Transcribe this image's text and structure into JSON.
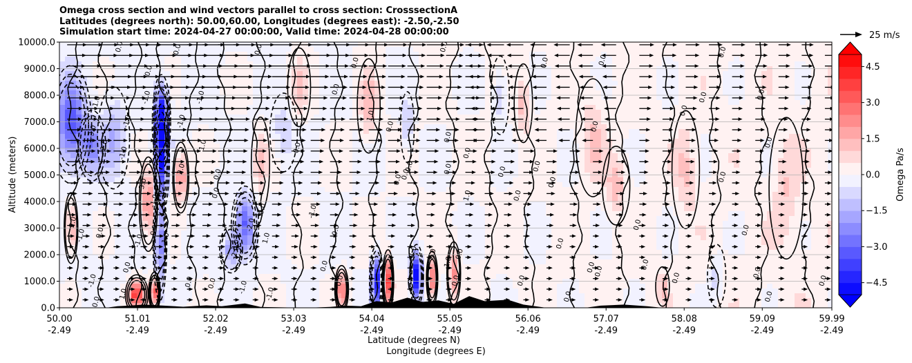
{
  "chart_data": {
    "type": "heatmap",
    "title_lines": [
      "Omega cross section and wind vectors parallel to cross section: CrosssectionA",
      "Latitudes (degrees north): 50.00,60.00, Longitudes (degrees east): -2.50,-2.50",
      "Simulation start time: 2024-04-27 00:00:00, Valid time: 2024-04-28 00:00:00"
    ],
    "ylabel": "Altitude (meters)",
    "xlabel_lines": [
      "Latitude (degrees N)",
      "Longitude (degrees E)"
    ],
    "ylim": [
      0,
      10000
    ],
    "xlim": [
      50.0,
      59.99
    ],
    "y_ticks": [
      {
        "value": 0,
        "label": "0.0"
      },
      {
        "value": 1000,
        "label": "1000.0"
      },
      {
        "value": 2000,
        "label": "2000.0"
      },
      {
        "value": 3000,
        "label": "3000.0"
      },
      {
        "value": 4000,
        "label": "4000.0"
      },
      {
        "value": 5000,
        "label": "5000.0"
      },
      {
        "value": 6000,
        "label": "6000.0"
      },
      {
        "value": 7000,
        "label": "7000.0"
      },
      {
        "value": 8000,
        "label": "8000.0"
      },
      {
        "value": 9000,
        "label": "9000.0"
      },
      {
        "value": 10000,
        "label": "10000.0"
      }
    ],
    "x_ticks": [
      {
        "value": 50.0,
        "lat": "50.00",
        "lon": "-2.49"
      },
      {
        "value": 51.01,
        "lat": "51.01",
        "lon": "-2.49"
      },
      {
        "value": 52.02,
        "lat": "52.02",
        "lon": "-2.49"
      },
      {
        "value": 53.03,
        "lat": "53.03",
        "lon": "-2.49"
      },
      {
        "value": 54.04,
        "lat": "54.04",
        "lon": "-2.49"
      },
      {
        "value": 55.05,
        "lat": "55.05",
        "lon": "-2.49"
      },
      {
        "value": 56.06,
        "lat": "56.06",
        "lon": "-2.49"
      },
      {
        "value": 57.07,
        "lat": "57.07",
        "lon": "-2.49"
      },
      {
        "value": 58.08,
        "lat": "58.08",
        "lon": "-2.49"
      },
      {
        "value": 59.09,
        "lat": "59.09",
        "lon": "-2.49"
      },
      {
        "value": 59.99,
        "lat": "59.99",
        "lon": "-2.49"
      }
    ],
    "grid": "horizontal",
    "colorbar": {
      "label": "Omega Pa/s",
      "range": [
        -5.0,
        5.0
      ],
      "extend": "both",
      "levels": 20,
      "ticks": [
        {
          "value": 4.5,
          "label": "4.5"
        },
        {
          "value": 3.0,
          "label": "3.0"
        },
        {
          "value": 1.5,
          "label": "1.5"
        },
        {
          "value": 0.0,
          "label": "0.0"
        },
        {
          "value": -1.5,
          "label": "−1.5"
        },
        {
          "value": -3.0,
          "label": "−3.0"
        },
        {
          "value": -4.5,
          "label": "−4.5"
        }
      ]
    },
    "vector_key": {
      "label": "25 m/s",
      "speed": 25
    },
    "colors": {
      "negative": "#0000ff",
      "positive": "#ff0000",
      "neutral": "#ffffff",
      "terrain": "#000000"
    },
    "omega_features": [
      {
        "lat": 50.15,
        "alt": 6900,
        "value": -3.2,
        "wlat": 0.18,
        "walt": 1500
      },
      {
        "lat": 50.42,
        "alt": 6100,
        "value": -2.0,
        "wlat": 0.12,
        "walt": 900
      },
      {
        "lat": 50.7,
        "alt": 6400,
        "value": -1.4,
        "wlat": 0.14,
        "walt": 1300
      },
      {
        "lat": 51.32,
        "alt": 7000,
        "value": -5.5,
        "wlat": 0.08,
        "walt": 1200
      },
      {
        "lat": 51.32,
        "alt": 5600,
        "value": -3.5,
        "wlat": 0.07,
        "walt": 1400
      },
      {
        "lat": 51.3,
        "alt": 2500,
        "value": -2.6,
        "wlat": 0.06,
        "walt": 1500
      },
      {
        "lat": 52.4,
        "alt": 3100,
        "value": -3.2,
        "wlat": 0.12,
        "walt": 1000
      },
      {
        "lat": 52.22,
        "alt": 2200,
        "value": -2.0,
        "wlat": 0.1,
        "walt": 600
      },
      {
        "lat": 51.15,
        "alt": 3900,
        "value": 2.4,
        "wlat": 0.08,
        "walt": 1200
      },
      {
        "lat": 51.57,
        "alt": 4900,
        "value": 2.3,
        "wlat": 0.07,
        "walt": 900
      },
      {
        "lat": 50.15,
        "alt": 3000,
        "value": 2.2,
        "wlat": 0.06,
        "walt": 900
      },
      {
        "lat": 51.0,
        "alt": 500,
        "value": 3.8,
        "wlat": 0.1,
        "walt": 500
      },
      {
        "lat": 51.23,
        "alt": 600,
        "value": 4.2,
        "wlat": 0.05,
        "walt": 500
      },
      {
        "lat": 53.65,
        "alt": 700,
        "value": 3.0,
        "wlat": 0.06,
        "walt": 600
      },
      {
        "lat": 54.1,
        "alt": 1000,
        "value": -4.5,
        "wlat": 0.06,
        "walt": 900
      },
      {
        "lat": 54.25,
        "alt": 1000,
        "value": 3.5,
        "wlat": 0.05,
        "walt": 800
      },
      {
        "lat": 54.62,
        "alt": 1200,
        "value": -5.5,
        "wlat": 0.06,
        "walt": 800
      },
      {
        "lat": 54.82,
        "alt": 1100,
        "value": 2.6,
        "wlat": 0.05,
        "walt": 700
      },
      {
        "lat": 55.1,
        "alt": 1300,
        "value": 2.2,
        "wlat": 0.06,
        "walt": 800
      },
      {
        "lat": 54.0,
        "alt": 7600,
        "value": 1.4,
        "wlat": 0.1,
        "walt": 1200
      },
      {
        "lat": 54.5,
        "alt": 6800,
        "value": -1.2,
        "wlat": 0.06,
        "walt": 900
      },
      {
        "lat": 53.1,
        "alt": 8300,
        "value": 1.1,
        "wlat": 0.1,
        "walt": 1000
      },
      {
        "lat": 56.0,
        "alt": 7700,
        "value": 1.3,
        "wlat": 0.08,
        "walt": 1000
      },
      {
        "lat": 55.7,
        "alt": 8000,
        "value": -1.1,
        "wlat": 0.08,
        "walt": 1000
      },
      {
        "lat": 57.2,
        "alt": 4600,
        "value": 1.2,
        "wlat": 0.12,
        "walt": 1000
      },
      {
        "lat": 56.9,
        "alt": 6400,
        "value": 1.0,
        "wlat": 0.15,
        "walt": 1500
      },
      {
        "lat": 58.1,
        "alt": 5200,
        "value": 1.0,
        "wlat": 0.12,
        "walt": 1500
      },
      {
        "lat": 57.8,
        "alt": 800,
        "value": 1.2,
        "wlat": 0.06,
        "walt": 500
      },
      {
        "lat": 58.5,
        "alt": 1200,
        "value": -0.9,
        "wlat": 0.08,
        "walt": 800
      },
      {
        "lat": 59.4,
        "alt": 4500,
        "value": 0.8,
        "wlat": 0.15,
        "walt": 1800
      },
      {
        "lat": 52.6,
        "alt": 5400,
        "value": 1.1,
        "wlat": 0.08,
        "walt": 1200
      },
      {
        "lat": 52.9,
        "alt": 6600,
        "value": -0.9,
        "wlat": 0.12,
        "walt": 1000
      }
    ],
    "terrain_profile": [
      {
        "lat": 50.6,
        "alt": 0
      },
      {
        "lat": 50.75,
        "alt": 60
      },
      {
        "lat": 50.95,
        "alt": 90
      },
      {
        "lat": 51.1,
        "alt": 120
      },
      {
        "lat": 51.35,
        "alt": 80
      },
      {
        "lat": 51.6,
        "alt": 40
      },
      {
        "lat": 51.9,
        "alt": 90
      },
      {
        "lat": 52.1,
        "alt": 60
      },
      {
        "lat": 52.4,
        "alt": 160
      },
      {
        "lat": 52.6,
        "alt": 30
      },
      {
        "lat": 53.2,
        "alt": 0
      },
      {
        "lat": 53.5,
        "alt": 30
      },
      {
        "lat": 53.7,
        "alt": 80
      },
      {
        "lat": 53.9,
        "alt": 60
      },
      {
        "lat": 54.1,
        "alt": 250
      },
      {
        "lat": 54.3,
        "alt": 200
      },
      {
        "lat": 54.5,
        "alt": 380
      },
      {
        "lat": 54.7,
        "alt": 220
      },
      {
        "lat": 54.9,
        "alt": 280
      },
      {
        "lat": 55.1,
        "alt": 150
      },
      {
        "lat": 55.3,
        "alt": 440
      },
      {
        "lat": 55.5,
        "alt": 250
      },
      {
        "lat": 55.8,
        "alt": 300
      },
      {
        "lat": 56.0,
        "alt": 120
      },
      {
        "lat": 56.3,
        "alt": 0
      },
      {
        "lat": 56.8,
        "alt": 0
      },
      {
        "lat": 57.0,
        "alt": 80
      },
      {
        "lat": 57.3,
        "alt": 120
      },
      {
        "lat": 57.6,
        "alt": 60
      },
      {
        "lat": 57.8,
        "alt": 0
      }
    ],
    "vector_columns": [
      50.1,
      50.3,
      50.5,
      50.7,
      50.9,
      51.05,
      51.25,
      51.45,
      51.65,
      51.85,
      52.05,
      52.25,
      52.5,
      52.75,
      53.0,
      53.25,
      53.5,
      53.75,
      54.0,
      54.25,
      54.5,
      54.75,
      55.0,
      55.25,
      55.5,
      55.75,
      56.0,
      56.3,
      56.6,
      56.9,
      57.2,
      57.5,
      57.8,
      58.1,
      58.4,
      58.7,
      59.0,
      59.3,
      59.6,
      59.9
    ],
    "vector_rows": [
      300,
      700,
      1100,
      1500,
      1900,
      2300,
      2700,
      3100,
      3500,
      3900,
      4300,
      4700,
      5100,
      5500,
      5900,
      6300,
      6700,
      7100,
      7500,
      7900,
      8300,
      8700,
      9100,
      9500,
      9900
    ],
    "contour_labels": [
      {
        "lat": 50.45,
        "alt": 6600,
        "text": "-3.0"
      },
      {
        "lat": 50.6,
        "alt": 6050,
        "text": "-2.0"
      },
      {
        "lat": 50.5,
        "alt": 7700,
        "text": "-1.0"
      },
      {
        "lat": 50.85,
        "alt": 5800,
        "text": "-1.0"
      },
      {
        "lat": 50.9,
        "alt": 7000,
        "text": "-1.0"
      },
      {
        "lat": 51.15,
        "alt": 7900,
        "text": "-1.0"
      },
      {
        "lat": 51.18,
        "alt": 8900,
        "text": "0.0"
      },
      {
        "lat": 51.6,
        "alt": 7000,
        "text": "-1.0"
      },
      {
        "lat": 51.85,
        "alt": 7900,
        "text": "-1.0"
      },
      {
        "lat": 51.6,
        "alt": 5200,
        "text": "2.0"
      },
      {
        "lat": 51.88,
        "alt": 6100,
        "text": "1.0"
      },
      {
        "lat": 51.1,
        "alt": 4600,
        "text": "-3.0"
      },
      {
        "lat": 51.25,
        "alt": 4000,
        "text": "-1.0"
      },
      {
        "lat": 51.05,
        "alt": 2500,
        "text": "-1.0"
      },
      {
        "lat": 51.25,
        "alt": 2900,
        "text": "0.0"
      },
      {
        "lat": 50.2,
        "alt": 3200,
        "text": "2.0"
      },
      {
        "lat": 50.55,
        "alt": 2800,
        "text": "0.0"
      },
      {
        "lat": 50.3,
        "alt": 2700,
        "text": "-1.0"
      },
      {
        "lat": 50.45,
        "alt": 1000,
        "text": "-1.0"
      },
      {
        "lat": 50.9,
        "alt": 1500,
        "text": "0.0"
      },
      {
        "lat": 51.4,
        "alt": 2600,
        "text": "1.0"
      },
      {
        "lat": 52.07,
        "alt": 5000,
        "text": "0.0"
      },
      {
        "lat": 52.05,
        "alt": 4300,
        "text": "0.0"
      },
      {
        "lat": 52.3,
        "alt": 2300,
        "text": "-3.0"
      },
      {
        "lat": 52.3,
        "alt": 2050,
        "text": "-2.0"
      },
      {
        "lat": 52.5,
        "alt": 3100,
        "text": "-2.0"
      },
      {
        "lat": 52.65,
        "alt": 3700,
        "text": "0.0"
      },
      {
        "lat": 52.7,
        "alt": 2600,
        "text": "1.0"
      },
      {
        "lat": 52.4,
        "alt": 750,
        "text": "-1.0"
      },
      {
        "lat": 51.7,
        "alt": 950,
        "text": "0.0"
      },
      {
        "lat": 52.0,
        "alt": 900,
        "text": "0.0"
      },
      {
        "lat": 53.3,
        "alt": 3600,
        "text": "-1.0"
      },
      {
        "lat": 53.6,
        "alt": 2900,
        "text": "0.0"
      },
      {
        "lat": 53.45,
        "alt": 1550,
        "text": "0.0"
      },
      {
        "lat": 53.65,
        "alt": 1000,
        "text": "0.0"
      },
      {
        "lat": 53.6,
        "alt": 8200,
        "text": "0.0"
      },
      {
        "lat": 53.85,
        "alt": 9200,
        "text": "0.0"
      },
      {
        "lat": 54.05,
        "alt": 7200,
        "text": "1.0"
      },
      {
        "lat": 53.1,
        "alt": 6000,
        "text": "0.0"
      },
      {
        "lat": 54.6,
        "alt": 2100,
        "text": "1.0"
      },
      {
        "lat": 54.4,
        "alt": 4800,
        "text": "0.0"
      },
      {
        "lat": 54.5,
        "alt": 5000,
        "text": "0.0"
      },
      {
        "lat": 54.3,
        "alt": 6800,
        "text": "0.0"
      },
      {
        "lat": 54.55,
        "alt": 5300,
        "text": "0.0"
      },
      {
        "lat": 55.05,
        "alt": 6400,
        "text": "0.0"
      },
      {
        "lat": 55.05,
        "alt": 5200,
        "text": "0.0"
      },
      {
        "lat": 54.85,
        "alt": 2000,
        "text": "0.0"
      },
      {
        "lat": 55.05,
        "alt": 1700,
        "text": "1.0"
      },
      {
        "lat": 55.15,
        "alt": 1000,
        "text": "0.0"
      },
      {
        "lat": 55.2,
        "alt": 2000,
        "text": "0.0"
      },
      {
        "lat": 55.3,
        "alt": 4200,
        "text": "1.0"
      },
      {
        "lat": 55.3,
        "alt": 5800,
        "text": "0.0"
      },
      {
        "lat": 55.75,
        "alt": 5100,
        "text": "0.0"
      },
      {
        "lat": 55.95,
        "alt": 4200,
        "text": "0.0"
      },
      {
        "lat": 56.2,
        "alt": 5300,
        "text": "0.0"
      },
      {
        "lat": 56.4,
        "alt": 4700,
        "text": "0.0"
      },
      {
        "lat": 55.0,
        "alt": 9800,
        "text": "0.0"
      },
      {
        "lat": 56.3,
        "alt": 9200,
        "text": "0.0"
      },
      {
        "lat": 56.95,
        "alt": 6800,
        "text": "0.0"
      },
      {
        "lat": 57.05,
        "alt": 9300,
        "text": "0.0"
      },
      {
        "lat": 57.0,
        "alt": 1350,
        "text": "0.0"
      },
      {
        "lat": 56.9,
        "alt": 1500,
        "text": "0.0"
      },
      {
        "lat": 57.5,
        "alt": 3100,
        "text": "0.0"
      },
      {
        "lat": 57.6,
        "alt": 1600,
        "text": "0.0"
      },
      {
        "lat": 58.1,
        "alt": 7400,
        "text": "0.0"
      },
      {
        "lat": 58.35,
        "alt": 7900,
        "text": "0.0"
      },
      {
        "lat": 58.6,
        "alt": 4900,
        "text": "0.0"
      },
      {
        "lat": 58.9,
        "alt": 2900,
        "text": "0.0"
      },
      {
        "lat": 59.1,
        "alt": 8000,
        "text": "0.0"
      },
      {
        "lat": 59.2,
        "alt": 6200,
        "text": "0.0"
      },
      {
        "lat": 59.05,
        "alt": 1300,
        "text": "0.0"
      },
      {
        "lat": 59.2,
        "alt": 400,
        "text": "0.0"
      },
      {
        "lat": 59.9,
        "alt": 1000,
        "text": "0.0"
      },
      {
        "lat": 58.0,
        "alt": 1100,
        "text": "0.0"
      },
      {
        "lat": 56.6,
        "alt": 400,
        "text": "0.0"
      },
      {
        "lat": 56.0,
        "alt": 1000,
        "text": "0.0"
      },
      {
        "lat": 58.6,
        "alt": 9600,
        "text": "0.0"
      },
      {
        "lat": 56.5,
        "alt": 2400,
        "text": "0.0"
      },
      {
        "lat": 50.8,
        "alt": 9800,
        "text": "0.0"
      },
      {
        "lat": 51.55,
        "alt": 9700,
        "text": "0.0"
      },
      {
        "lat": 52.6,
        "alt": 9700,
        "text": "0.0"
      },
      {
        "lat": 50.5,
        "alt": 200,
        "text": "0.0"
      },
      {
        "lat": 50.85,
        "alt": 500,
        "text": "1.0"
      },
      {
        "lat": 52.75,
        "alt": 500,
        "text": "-1.0"
      }
    ]
  }
}
